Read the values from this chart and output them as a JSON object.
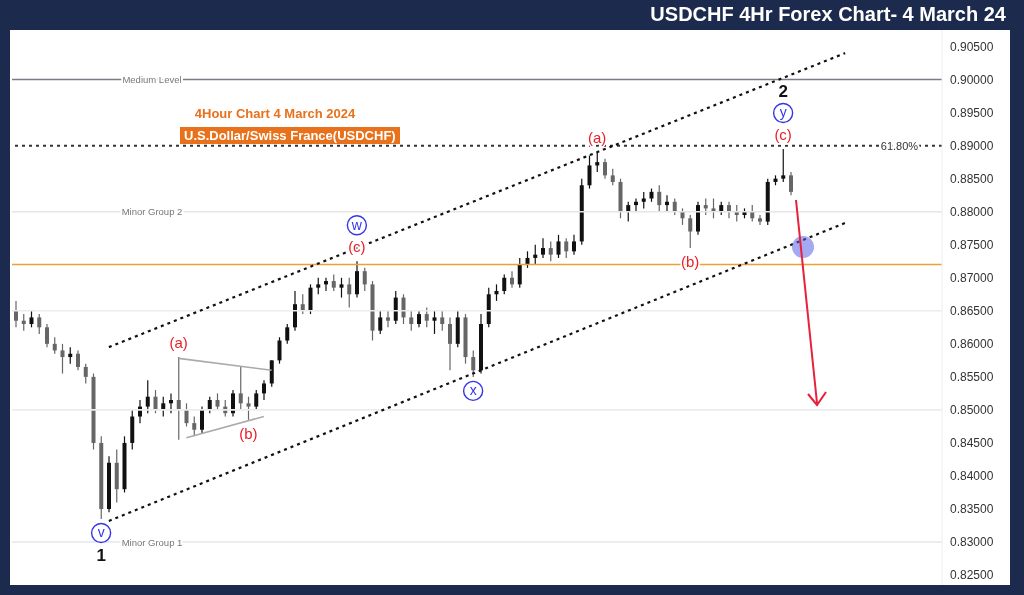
{
  "chart_data": {
    "type": "candlestick",
    "title": "USDCHF 4Hr Forex Chart- 4 March 24",
    "subtitle": "4Hour Chart 4 March 2024",
    "categories": [
      null,
      null,
      null,
      null,
      null,
      null,
      null,
      null,
      null,
      null,
      null,
      null,
      null,
      null,
      null,
      null,
      null,
      null,
      null,
      null,
      null,
      null,
      null,
      null,
      null,
      null,
      null,
      null,
      null,
      null,
      null,
      null,
      null,
      null,
      null,
      null,
      null,
      null,
      null,
      null,
      null,
      null,
      null,
      null,
      null,
      null,
      null,
      null,
      null,
      null,
      null,
      null,
      null,
      null,
      null,
      null,
      null,
      null,
      null,
      null,
      null,
      null,
      null,
      null,
      null,
      null,
      null,
      null,
      null,
      null,
      null,
      null,
      null,
      null,
      null,
      null,
      null,
      null,
      null,
      null,
      null,
      null,
      null,
      null,
      null,
      null,
      null,
      null,
      null,
      null,
      null,
      null,
      null,
      null,
      null,
      null,
      null,
      null,
      null,
      null,
      null,
      null,
      null,
      null,
      null,
      null,
      null,
      null,
      null,
      null,
      null,
      null,
      null,
      null,
      null,
      null,
      null,
      null,
      null,
      null
    ],
    "ohlc": [
      [
        0.865,
        0.8665,
        0.8625,
        0.8635
      ],
      [
        0.8635,
        0.8645,
        0.862,
        0.863
      ],
      [
        0.863,
        0.865,
        0.8625,
        0.864
      ],
      [
        0.864,
        0.8645,
        0.8615,
        0.8625
      ],
      [
        0.8625,
        0.863,
        0.8595,
        0.86
      ],
      [
        0.86,
        0.861,
        0.8585,
        0.859
      ],
      [
        0.859,
        0.86,
        0.8555,
        0.858
      ],
      [
        0.858,
        0.8595,
        0.857,
        0.8585
      ],
      [
        0.8585,
        0.859,
        0.856,
        0.8565
      ],
      [
        0.8565,
        0.857,
        0.854,
        0.855
      ],
      [
        0.855,
        0.8555,
        0.844,
        0.845
      ],
      [
        0.845,
        0.846,
        0.8335,
        0.835
      ],
      [
        0.835,
        0.843,
        0.8345,
        0.842
      ],
      [
        0.842,
        0.844,
        0.836,
        0.838
      ],
      [
        0.838,
        0.846,
        0.8375,
        0.845
      ],
      [
        0.845,
        0.85,
        0.844,
        0.849
      ],
      [
        0.849,
        0.8515,
        0.848,
        0.8505
      ],
      [
        0.8505,
        0.8545,
        0.8495,
        0.852
      ],
      [
        0.852,
        0.853,
        0.8495,
        0.85
      ],
      [
        0.85,
        0.852,
        0.849,
        0.851
      ],
      [
        0.851,
        0.8525,
        0.8495,
        0.8515
      ],
      [
        0.8515,
        0.858,
        0.8455,
        0.85
      ],
      [
        0.85,
        0.851,
        0.8475,
        0.848
      ],
      [
        0.848,
        0.849,
        0.846,
        0.847
      ],
      [
        0.847,
        0.8505,
        0.8465,
        0.85
      ],
      [
        0.85,
        0.852,
        0.8495,
        0.8515
      ],
      [
        0.8515,
        0.8525,
        0.85,
        0.8505
      ],
      [
        0.8505,
        0.8515,
        0.849,
        0.8495
      ],
      [
        0.8495,
        0.853,
        0.849,
        0.8525
      ],
      [
        0.8525,
        0.8565,
        0.85,
        0.851
      ],
      [
        0.851,
        0.852,
        0.8485,
        0.8505
      ],
      [
        0.8505,
        0.853,
        0.85,
        0.8525
      ],
      [
        0.8525,
        0.8545,
        0.8515,
        0.854
      ],
      [
        0.854,
        0.8575,
        0.8535,
        0.8575
      ],
      [
        0.8575,
        0.861,
        0.857,
        0.8605
      ],
      [
        0.8605,
        0.863,
        0.86,
        0.8625
      ],
      [
        0.8625,
        0.868,
        0.862,
        0.866
      ],
      [
        0.866,
        0.8675,
        0.8645,
        0.865
      ],
      [
        0.865,
        0.869,
        0.8645,
        0.8685
      ],
      [
        0.8685,
        0.87,
        0.8675,
        0.869
      ],
      [
        0.869,
        0.87,
        0.868,
        0.8695
      ],
      [
        0.8695,
        0.8705,
        0.868,
        0.8685
      ],
      [
        0.8685,
        0.87,
        0.867,
        0.869
      ],
      [
        0.869,
        0.87,
        0.8655,
        0.8675
      ],
      [
        0.8675,
        0.8725,
        0.867,
        0.871
      ],
      [
        0.871,
        0.8715,
        0.868,
        0.869
      ],
      [
        0.869,
        0.8695,
        0.8605,
        0.862
      ],
      [
        0.862,
        0.865,
        0.8615,
        0.864
      ],
      [
        0.864,
        0.865,
        0.8625,
        0.8635
      ],
      [
        0.8635,
        0.868,
        0.863,
        0.867
      ],
      [
        0.867,
        0.8675,
        0.863,
        0.864
      ],
      [
        0.864,
        0.865,
        0.862,
        0.863
      ],
      [
        0.863,
        0.865,
        0.8625,
        0.8645
      ],
      [
        0.8645,
        0.8655,
        0.8625,
        0.8635
      ],
      [
        0.8635,
        0.865,
        0.8615,
        0.864
      ],
      [
        0.864,
        0.865,
        0.862,
        0.863
      ],
      [
        0.863,
        0.864,
        0.856,
        0.86
      ],
      [
        0.86,
        0.865,
        0.8595,
        0.864
      ],
      [
        0.864,
        0.8645,
        0.857,
        0.858
      ],
      [
        0.858,
        0.859,
        0.855,
        0.856
      ],
      [
        0.856,
        0.8645,
        0.8555,
        0.863
      ],
      [
        0.863,
        0.8685,
        0.8625,
        0.8675
      ],
      [
        0.8675,
        0.869,
        0.8665,
        0.868
      ],
      [
        0.868,
        0.8705,
        0.8675,
        0.87
      ],
      [
        0.87,
        0.871,
        0.8685,
        0.869
      ],
      [
        0.869,
        0.873,
        0.8685,
        0.872
      ],
      [
        0.872,
        0.874,
        0.8715,
        0.873
      ],
      [
        0.873,
        0.875,
        0.872,
        0.8735
      ],
      [
        0.8735,
        0.876,
        0.873,
        0.8745
      ],
      [
        0.8745,
        0.8755,
        0.8725,
        0.8735
      ],
      [
        0.8735,
        0.8765,
        0.873,
        0.8755
      ],
      [
        0.8755,
        0.876,
        0.873,
        0.874
      ],
      [
        0.874,
        0.8765,
        0.8735,
        0.8755
      ],
      [
        0.8755,
        0.885,
        0.875,
        0.884
      ],
      [
        0.884,
        0.8885,
        0.8835,
        0.887
      ],
      [
        0.887,
        0.889,
        0.886,
        0.8875
      ],
      [
        0.8875,
        0.888,
        0.885,
        0.8855
      ],
      [
        0.8855,
        0.8865,
        0.884,
        0.8845
      ],
      [
        0.8845,
        0.885,
        0.879,
        0.88
      ],
      [
        0.88,
        0.8815,
        0.8785,
        0.881
      ],
      [
        0.881,
        0.882,
        0.88,
        0.8815
      ],
      [
        0.8815,
        0.883,
        0.8805,
        0.882
      ],
      [
        0.882,
        0.8835,
        0.8815,
        0.883
      ],
      [
        0.883,
        0.884,
        0.88,
        0.881
      ],
      [
        0.881,
        0.8825,
        0.88,
        0.8815
      ],
      [
        0.8815,
        0.882,
        0.8795,
        0.88
      ],
      [
        0.88,
        0.8805,
        0.878,
        0.879
      ],
      [
        0.879,
        0.8795,
        0.8745,
        0.877
      ],
      [
        0.877,
        0.8815,
        0.8765,
        0.881
      ],
      [
        0.881,
        0.882,
        0.8795,
        0.8805
      ],
      [
        0.8805,
        0.882,
        0.879,
        0.88
      ],
      [
        0.88,
        0.8815,
        0.8795,
        0.881
      ],
      [
        0.881,
        0.8815,
        0.879,
        0.88
      ],
      [
        0.88,
        0.881,
        0.8785,
        0.8795
      ],
      [
        0.8795,
        0.8805,
        0.879,
        0.88
      ],
      [
        0.88,
        0.881,
        0.8785,
        0.879
      ],
      [
        0.879,
        0.8795,
        0.878,
        0.8785
      ],
      [
        0.8785,
        0.885,
        0.878,
        0.8845
      ],
      [
        0.8845,
        0.8855,
        0.884,
        0.885
      ],
      [
        0.885,
        0.8895,
        0.8845,
        0.8855
      ],
      [
        0.8855,
        0.886,
        0.8825,
        0.883
      ],
      null,
      null,
      null,
      null,
      null,
      null,
      null,
      null,
      null,
      null,
      null,
      null,
      null,
      null,
      null,
      null,
      null,
      null,
      null
    ],
    "series": [
      {
        "type": "line",
        "color": "#111111",
        "line_style": "dotted",
        "values": [
          null,
          null,
          null,
          null,
          null,
          null,
          null,
          null,
          null,
          null,
          null,
          null,
          0.8595,
          null,
          null,
          null,
          null,
          null,
          null,
          null,
          null,
          null,
          null,
          null,
          null,
          null,
          null,
          null,
          null,
          null,
          null,
          null,
          null,
          null,
          null,
          null,
          null,
          null,
          null,
          null,
          null,
          null,
          null,
          null,
          null,
          null,
          null,
          null,
          null,
          null,
          null,
          null,
          null,
          null,
          null,
          null,
          null,
          null,
          null,
          null,
          null,
          null,
          null,
          null,
          null,
          null,
          null,
          null,
          null,
          null,
          null,
          null,
          null,
          null,
          null,
          null,
          null,
          null,
          null,
          null,
          null,
          null,
          null,
          null,
          null,
          null,
          null,
          null,
          null,
          null,
          null,
          null,
          null,
          null,
          null,
          null,
          null,
          null,
          null,
          null,
          null,
          null,
          null,
          null,
          null,
          null,
          null,
          0.904,
          null,
          null,
          null,
          null,
          null,
          null,
          null,
          null,
          null,
          null,
          null,
          null
        ]
      },
      {
        "type": "line",
        "color": "#111111",
        "line_style": "dotted",
        "values": [
          null,
          null,
          null,
          null,
          null,
          null,
          null,
          null,
          null,
          null,
          null,
          null,
          0.8332,
          null,
          null,
          null,
          null,
          null,
          null,
          null,
          null,
          null,
          null,
          null,
          null,
          null,
          null,
          null,
          null,
          null,
          null,
          null,
          null,
          null,
          null,
          null,
          null,
          null,
          null,
          null,
          null,
          null,
          null,
          null,
          null,
          null,
          null,
          null,
          null,
          null,
          null,
          null,
          null,
          null,
          null,
          null,
          null,
          null,
          null,
          null,
          null,
          null,
          null,
          null,
          null,
          null,
          null,
          null,
          null,
          null,
          null,
          null,
          null,
          null,
          null,
          null,
          null,
          null,
          null,
          null,
          null,
          null,
          null,
          null,
          null,
          null,
          null,
          null,
          null,
          null,
          null,
          null,
          null,
          null,
          null,
          null,
          null,
          null,
          null,
          null,
          null,
          null,
          null,
          null,
          null,
          null,
          null,
          0.8783,
          null,
          null,
          null,
          null,
          null,
          null,
          null,
          null,
          null,
          null,
          null,
          null
        ]
      },
      {
        "type": "line",
        "color": "#aaaaaa",
        "line_style": "solid",
        "values": [
          null,
          null,
          null,
          null,
          null,
          null,
          null,
          null,
          null,
          null,
          null,
          null,
          null,
          null,
          null,
          null,
          null,
          null,
          null,
          null,
          null,
          0.8578,
          null,
          null,
          null,
          null,
          null,
          null,
          null,
          null,
          null,
          null,
          null,
          0.856,
          null,
          null,
          null,
          null,
          null,
          null,
          null,
          null,
          null,
          null,
          null,
          null,
          null,
          null,
          null,
          null,
          null,
          null,
          null,
          null,
          null,
          null,
          null,
          null,
          null,
          null,
          null,
          null,
          null,
          null,
          null,
          null,
          null,
          null,
          null,
          null,
          null,
          null,
          null,
          null,
          null,
          null,
          null,
          null,
          null,
          null,
          null,
          null,
          null,
          null,
          null,
          null,
          null,
          null,
          null,
          null,
          null,
          null,
          null,
          null,
          null,
          null,
          null,
          null,
          null,
          null,
          null,
          null,
          null,
          null,
          null,
          null,
          null,
          null,
          null,
          null,
          null,
          null,
          null,
          null,
          null,
          null,
          null,
          null,
          null,
          null
        ]
      },
      {
        "type": "line",
        "color": "#aaaaaa",
        "line_style": "solid",
        "values": [
          null,
          null,
          null,
          null,
          null,
          null,
          null,
          null,
          null,
          null,
          null,
          null,
          null,
          null,
          null,
          null,
          null,
          null,
          null,
          null,
          null,
          null,
          0.8458,
          null,
          null,
          null,
          null,
          null,
          null,
          null,
          null,
          null,
          0.849,
          null,
          null,
          null,
          null,
          null,
          null,
          null,
          null,
          null,
          null,
          null,
          null,
          null,
          null,
          null,
          null,
          null,
          null,
          null,
          null,
          null,
          null,
          null,
          null,
          null,
          null,
          null,
          null,
          null,
          null,
          null,
          null,
          null,
          null,
          null,
          null,
          null,
          null,
          null,
          null,
          null,
          null,
          null,
          null,
          null,
          null,
          null,
          null,
          null,
          null,
          null,
          null,
          null,
          null,
          null,
          null,
          null,
          null,
          null,
          null,
          null,
          null,
          null,
          null,
          null,
          null,
          null,
          null,
          null,
          null,
          null,
          null,
          null,
          null,
          null,
          null,
          null,
          null,
          null,
          null,
          null,
          null,
          null,
          null,
          null,
          null,
          null
        ]
      }
    ],
    "ylim": [
      0.8235,
      0.9075
    ],
    "yticks": [
      {
        "value": 0.825,
        "label": "0.82500"
      },
      {
        "value": 0.83,
        "label": "0.83000"
      },
      {
        "value": 0.835,
        "label": "0.83500"
      },
      {
        "value": 0.84,
        "label": "0.84000"
      },
      {
        "value": 0.845,
        "label": "0.84500"
      },
      {
        "value": 0.85,
        "label": "0.85000"
      },
      {
        "value": 0.855,
        "label": "0.85500"
      },
      {
        "value": 0.86,
        "label": "0.86000"
      },
      {
        "value": 0.865,
        "label": "0.86500"
      },
      {
        "value": 0.87,
        "label": "0.87000"
      },
      {
        "value": 0.875,
        "label": "0.87500"
      },
      {
        "value": 0.88,
        "label": "0.88000"
      },
      {
        "value": 0.885,
        "label": "0.88500"
      },
      {
        "value": 0.89,
        "label": "0.89000"
      },
      {
        "value": 0.895,
        "label": "0.89500"
      },
      {
        "value": 0.9,
        "label": "0.90000"
      },
      {
        "value": 0.905,
        "label": "0.90500"
      }
    ],
    "tick_labels": "y",
    "ref_lines": [
      {
        "axis": "y",
        "value": 0.9,
        "label": "Medium Level",
        "color": "#7c7c88"
      },
      {
        "axis": "y",
        "value": 0.88,
        "label": "Minor Group 2",
        "color": "#e6e6ea"
      },
      {
        "axis": "y",
        "value": 0.83,
        "label": "Minor Group 1",
        "color": "#e6e6ea"
      },
      {
        "axis": "y",
        "value": 0.865,
        "color": "#ececf0"
      },
      {
        "axis": "y",
        "value": 0.85,
        "color": "#ececf0"
      },
      {
        "axis": "y",
        "value": 0.872,
        "color": "#f0a030"
      },
      {
        "axis": "y",
        "value": 0.89,
        "color": "#333333",
        "line_style": "dotted"
      }
    ],
    "annotations": [
      "U.S.Dollar/Swiss France(USDCHF)",
      {
        "text": "v",
        "y": 0.8335
      },
      {
        "text": "1",
        "y": 0.8335
      },
      {
        "text": "(a)",
        "y": 0.858
      },
      {
        "text": "(b)",
        "y": 0.8485
      },
      {
        "text": "(c)",
        "y": 0.8725
      },
      {
        "text": "w",
        "y": 0.8725
      },
      {
        "text": "x",
        "y": 0.855
      },
      {
        "text": "(a)",
        "y": 0.889
      },
      {
        "text": "(b)",
        "y": 0.8745
      },
      {
        "text": "(c)",
        "y": 0.8895
      },
      {
        "text": "y",
        "y": 0.8895
      },
      {
        "text": "2",
        "y": 0.8895
      },
      {
        "text": "61.80%",
        "y": 0.89
      }
    ]
  }
}
